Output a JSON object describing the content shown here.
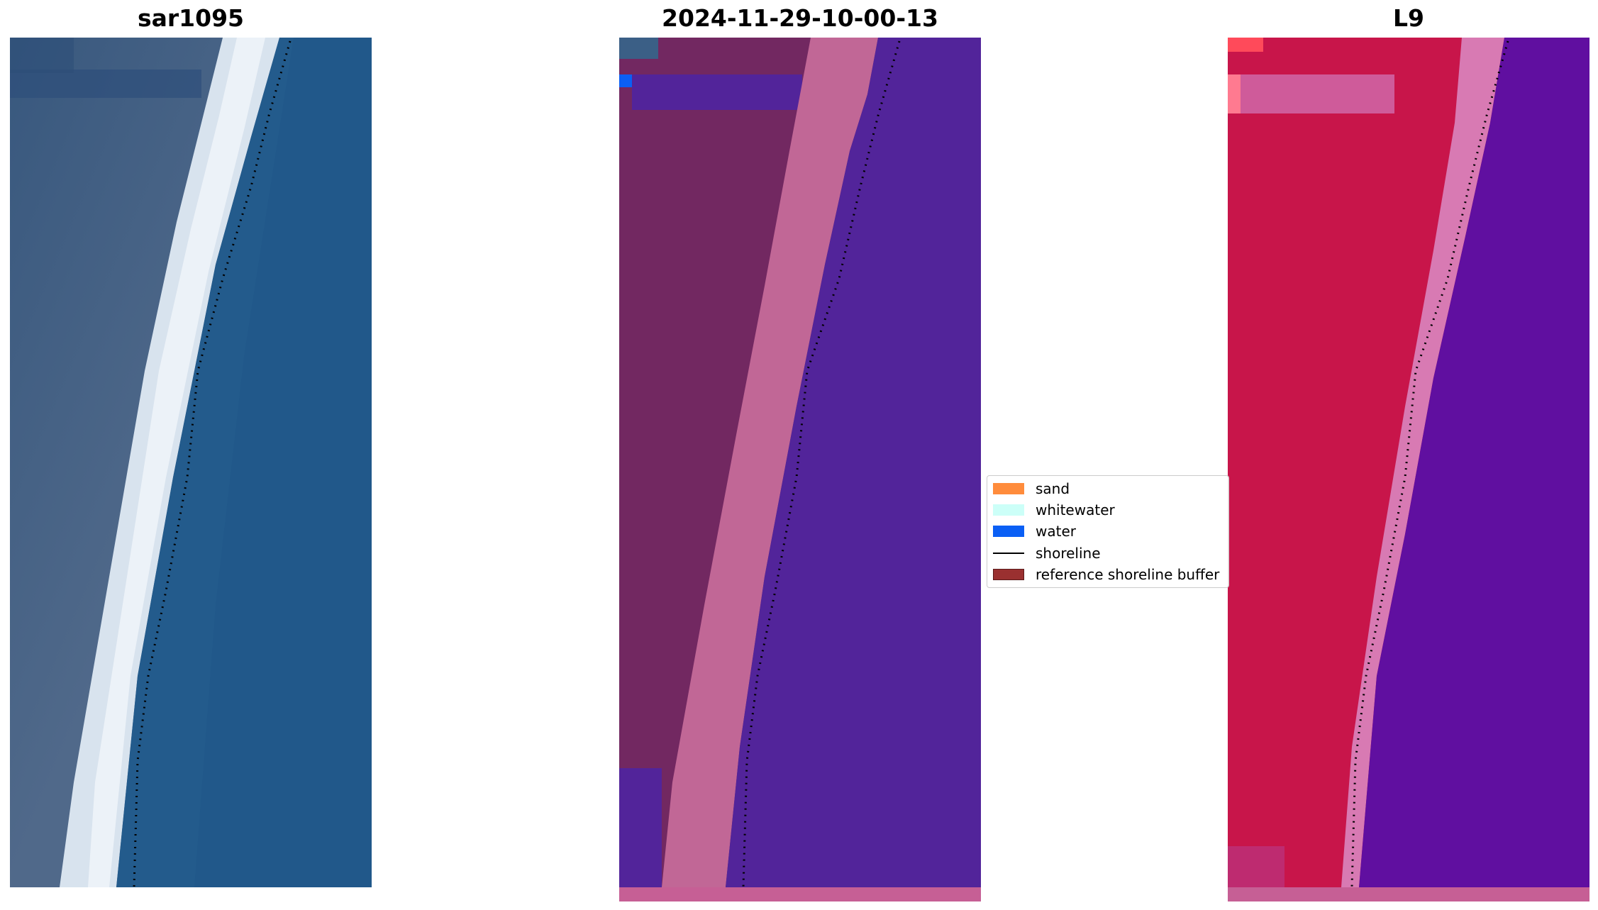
{
  "panels": [
    {
      "title": "sar1095"
    },
    {
      "title": "2024-11-29-10-00-13"
    },
    {
      "title": "L9"
    }
  ],
  "legend": {
    "items": [
      {
        "label": "sand",
        "color": "#ff8c3c",
        "kind": "patch"
      },
      {
        "label": "whitewater",
        "color": "#ccfff8",
        "kind": "patch"
      },
      {
        "label": "water",
        "color": "#0a5ff5",
        "kind": "patch"
      },
      {
        "label": "shoreline",
        "color": "#000000",
        "kind": "line"
      },
      {
        "label": "reference shoreline buffer",
        "color": "#9a3030",
        "kind": "patch"
      }
    ]
  },
  "colors": {
    "rgb_land": "#3f5f86",
    "rgb_beach": "#d9e4ee",
    "rgb_water": "#235b8c",
    "class_land": "#722861",
    "class_beach": "#c16796",
    "class_water": "#52249a",
    "l9_land": "#c8154a",
    "l9_beach": "#d87ab3",
    "l9_water": "#600fa0"
  }
}
